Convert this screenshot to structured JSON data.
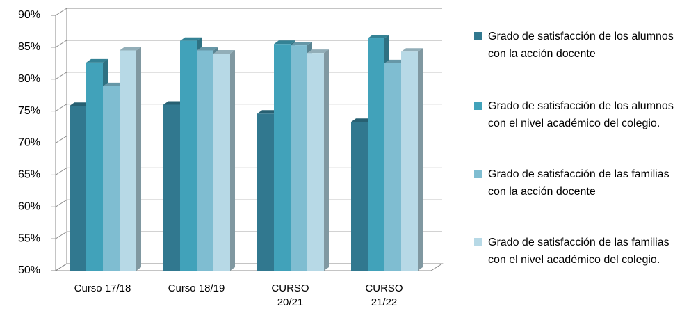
{
  "chart_data": {
    "type": "bar3d",
    "categories": [
      "Curso 17/18",
      "Curso 18/19",
      "CURSO 20/21",
      "CURSO 21/22"
    ],
    "series": [
      {
        "name": "Grado de satisfacción de los alumnos con la acción docente",
        "color": "#31788f",
        "values": [
          75.8,
          76,
          74.6,
          73.3
        ]
      },
      {
        "name": "Grado de satisfacción de los alumnos con el nivel académico del colegio.",
        "color": "#41a2ba",
        "values": [
          82.6,
          86,
          85.5,
          86.4
        ]
      },
      {
        "name": "Grado de satisfacción de las familias con la acción docente",
        "color": "#7fbdd1",
        "values": [
          78.9,
          84.5,
          85.3,
          82.5
        ]
      },
      {
        "name": "Grado de satisfacción de las familias con el nivel académico del colegio.",
        "color": "#b7d9e6",
        "values": [
          84.5,
          84,
          84.1,
          84.3
        ]
      }
    ],
    "ylim": [
      50,
      90
    ],
    "yticks": [
      {
        "value": 50,
        "label": "50%"
      },
      {
        "value": 55,
        "label": "55%"
      },
      {
        "value": 60,
        "label": "60%"
      },
      {
        "value": 65,
        "label": "65%"
      },
      {
        "value": 70,
        "label": "70%"
      },
      {
        "value": 75,
        "label": "75%"
      },
      {
        "value": 80,
        "label": "80%"
      },
      {
        "value": 85,
        "label": "85%"
      },
      {
        "value": 90,
        "label": "90%"
      }
    ],
    "grid": true,
    "legend": "right"
  }
}
